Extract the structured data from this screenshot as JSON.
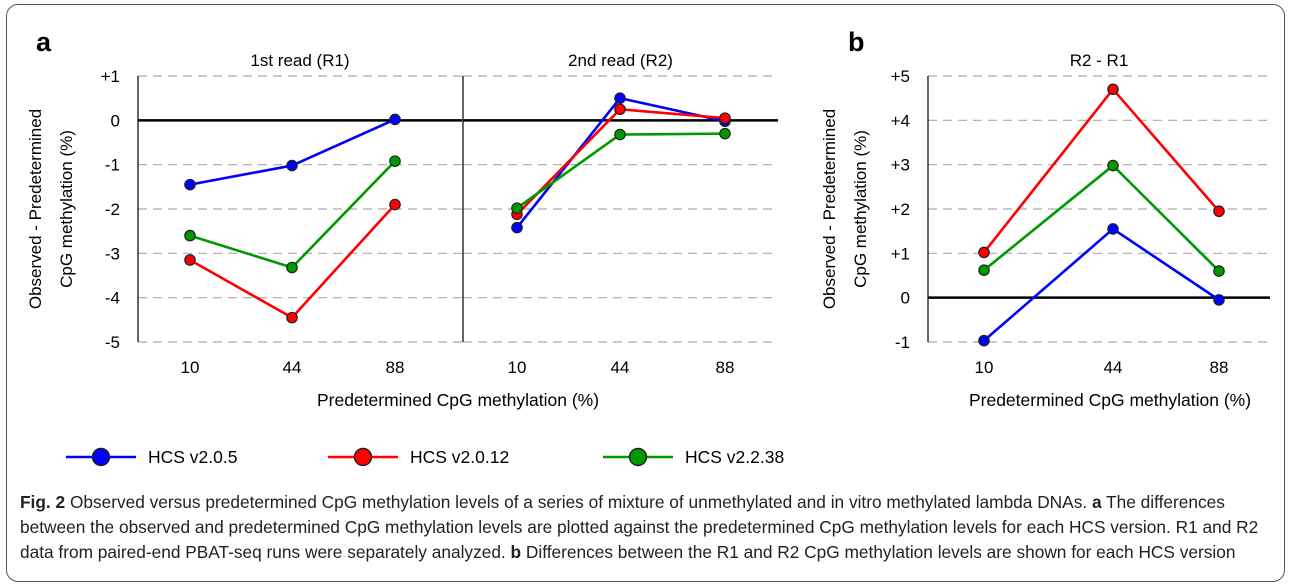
{
  "figure": {
    "colors": {
      "series_1": "#0000ff",
      "series_2": "#ff0000",
      "series_3": "#009900",
      "grid": "#aaaaaa",
      "zero_line": "#000000"
    }
  },
  "legend": [
    {
      "label": "HCS v2.0.5",
      "color": "#0000ff"
    },
    {
      "label": "HCS v2.0.12",
      "color": "#ff0000"
    },
    {
      "label": "HCS v2.2.38",
      "color": "#009900"
    }
  ],
  "chart_data": [
    {
      "type": "line",
      "panel_letter": "a",
      "title": "1st read (R1)",
      "xlabel": "Predetermined CpG methylation (%)",
      "ylabel": "Observed - Predetermined CpG methylation (%)",
      "ylabel_lines": [
        "Observed - Predetermined",
        "CpG methylation (%)"
      ],
      "categories": [
        "10",
        "44",
        "88"
      ],
      "ylim": [
        -5,
        1
      ],
      "yticks": [
        "+1",
        "0",
        "-1",
        "-2",
        "-3",
        "-4",
        "-5"
      ],
      "grid": "horizontal dashed",
      "series": [
        {
          "name": "HCS v2.0.5",
          "values": [
            -1.45,
            -1.02,
            0.02
          ]
        },
        {
          "name": "HCS v2.0.12",
          "values": [
            -3.15,
            -4.45,
            -1.9
          ]
        },
        {
          "name": "HCS v2.2.38",
          "values": [
            -2.6,
            -3.32,
            -0.92
          ]
        }
      ]
    },
    {
      "type": "line",
      "title": "2nd read (R2)",
      "categories": [
        "10",
        "44",
        "88"
      ],
      "ylim": [
        -5,
        1
      ],
      "grid": "horizontal dashed",
      "series": [
        {
          "name": "HCS v2.0.5",
          "values": [
            -2.42,
            0.5,
            -0.02
          ]
        },
        {
          "name": "HCS v2.0.12",
          "values": [
            -2.12,
            0.25,
            0.05
          ]
        },
        {
          "name": "HCS v2.2.38",
          "values": [
            -1.98,
            -0.32,
            -0.3
          ]
        }
      ]
    },
    {
      "type": "line",
      "panel_letter": "b",
      "title": "R2 - R1",
      "xlabel": "Predetermined CpG methylation (%)",
      "ylabel": "Observed - Predetermined CpG methylation (%)",
      "ylabel_lines": [
        "Observed - Predetermined",
        "CpG methylation (%)"
      ],
      "categories": [
        "10",
        "44",
        "88"
      ],
      "ylim": [
        -1,
        5
      ],
      "yticks": [
        "+5",
        "+4",
        "+3",
        "+2",
        "+1",
        "0",
        "-1"
      ],
      "grid": "horizontal dashed",
      "series": [
        {
          "name": "HCS v2.0.5",
          "values": [
            -0.97,
            1.55,
            -0.05
          ]
        },
        {
          "name": "HCS v2.0.12",
          "values": [
            1.02,
            4.7,
            1.95
          ]
        },
        {
          "name": "HCS v2.2.38",
          "values": [
            0.62,
            2.98,
            0.6
          ]
        }
      ]
    }
  ],
  "caption": {
    "label": "Fig. 2",
    "text": " Observed versus predetermined CpG methylation levels of a series of mixture of unmethylated and in vitro methylated lambda DNAs. ",
    "a_label": "a",
    "a_text": " The differences between the observed and predetermined CpG methylation levels are plotted against the predetermined CpG methylation levels for each HCS version. R1 and R2 data from paired-end PBAT-seq runs were separately analyzed. ",
    "b_label": "b",
    "b_text": " Differences between the R1 and R2 CpG methylation levels are shown for each HCS version"
  }
}
